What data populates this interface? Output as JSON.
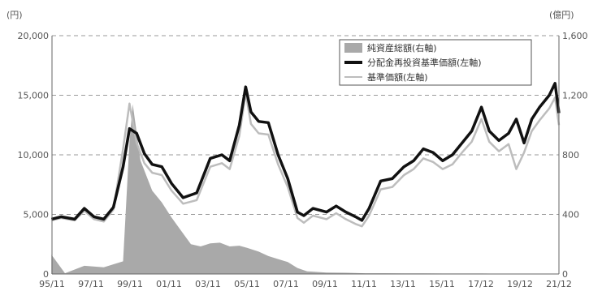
{
  "chart_data": {
    "type": "line",
    "left_axis": {
      "unit_label": "(円)",
      "range": [
        0,
        20000
      ],
      "ticks": [
        "0",
        "5,000",
        "10,000",
        "15,000",
        "20,000"
      ]
    },
    "right_axis": {
      "unit_label": "(億円)",
      "range": [
        0,
        1600
      ],
      "ticks": [
        "0",
        "400",
        "800",
        "1,200",
        "1,600"
      ]
    },
    "x_ticks": [
      "95/11",
      "97/11",
      "99/11",
      "01/11",
      "03/11",
      "05/11",
      "07/11",
      "09/11",
      "11/11",
      "13/11",
      "15/11",
      "17/12",
      "19/12",
      "21/12"
    ],
    "grid": "horizontal dashed",
    "legend_position": "top-right",
    "series": [
      {
        "name": "純資産総額(右軸)",
        "axis": "right",
        "style": "area",
        "color": "#a9a9a9",
        "x": [
          1995.8,
          1996.5,
          1997.5,
          1998.5,
          1999.5,
          1999.83,
          2000.0,
          2000.4,
          2001.0,
          2001.5,
          2002.0,
          2002.5,
          2003.0,
          2003.5,
          2004.0,
          2004.5,
          2005.0,
          2005.5,
          2005.9,
          2006.5,
          2007.0,
          2007.5,
          2008.0,
          2008.5,
          2009.0,
          2010.0,
          2011.0,
          2012.0,
          2013.0,
          2014.0,
          2015.0,
          2016.0,
          2017.0,
          2018.0,
          2019.0,
          2020.0,
          2021.0,
          2022.0
        ],
        "values": [
          130,
          5,
          55,
          45,
          85,
          890,
          1140,
          760,
          560,
          480,
          380,
          290,
          200,
          185,
          205,
          210,
          185,
          190,
          175,
          150,
          120,
          100,
          80,
          40,
          18,
          10,
          8,
          5,
          5,
          4,
          4,
          3,
          3,
          3,
          2,
          2,
          2,
          2
        ]
      },
      {
        "name": "分配金再投資基準価額(左軸)",
        "axis": "left",
        "style": "line",
        "color": "#111111",
        "x": [
          1995.8,
          1996.3,
          1997.0,
          1997.5,
          1998.0,
          1998.5,
          1999.0,
          1999.5,
          1999.83,
          2000.2,
          2000.6,
          2001.0,
          2001.5,
          2002.0,
          2002.6,
          2003.3,
          2004.0,
          2004.6,
          2005.0,
          2005.5,
          2005.83,
          2006.1,
          2006.5,
          2007.0,
          2007.5,
          2008.0,
          2008.5,
          2008.83,
          2009.3,
          2010.0,
          2010.5,
          2011.0,
          2011.5,
          2011.83,
          2012.2,
          2012.8,
          2013.4,
          2014.0,
          2014.5,
          2015.0,
          2015.5,
          2016.0,
          2016.5,
          2017.0,
          2017.5,
          2018.0,
          2018.4,
          2018.9,
          2019.4,
          2019.8,
          2020.2,
          2020.6,
          2021.0,
          2021.5,
          2021.8,
          2022.0
        ],
        "values": [
          4600,
          4800,
          4600,
          5500,
          4800,
          4600,
          5600,
          9000,
          12200,
          11800,
          10100,
          9200,
          9000,
          7600,
          6400,
          6800,
          9700,
          10000,
          9500,
          12500,
          15700,
          13600,
          12800,
          12700,
          10000,
          8000,
          5200,
          4900,
          5500,
          5200,
          5700,
          5200,
          4800,
          4500,
          5500,
          7800,
          8000,
          9000,
          9500,
          10500,
          10200,
          9500,
          10000,
          11000,
          12000,
          14000,
          12000,
          11200,
          11800,
          13000,
          11000,
          13000,
          14000,
          15000,
          16000,
          13500
        ]
      },
      {
        "name": "基準価額(左軸)",
        "axis": "left",
        "style": "line",
        "color": "#bdbdbd",
        "x": [
          1995.8,
          1996.3,
          1997.0,
          1997.5,
          1998.0,
          1998.5,
          1999.0,
          1999.5,
          1999.83,
          2000.2,
          2000.6,
          2001.0,
          2001.5,
          2002.0,
          2002.6,
          2003.3,
          2004.0,
          2004.6,
          2005.0,
          2005.5,
          2005.83,
          2006.1,
          2006.5,
          2007.0,
          2007.5,
          2008.0,
          2008.5,
          2008.83,
          2009.3,
          2010.0,
          2010.5,
          2011.0,
          2011.5,
          2011.83,
          2012.2,
          2012.8,
          2013.4,
          2014.0,
          2014.5,
          2015.0,
          2015.5,
          2016.0,
          2016.5,
          2017.0,
          2017.5,
          2018.0,
          2018.4,
          2018.9,
          2019.4,
          2019.8,
          2020.2,
          2020.6,
          2021.0,
          2021.5,
          2021.8,
          2022.0
        ],
        "values": [
          4500,
          4700,
          4500,
          5300,
          4600,
          4400,
          5400,
          10500,
          14300,
          11000,
          9300,
          8500,
          8300,
          7000,
          5900,
          6200,
          9000,
          9300,
          8800,
          11600,
          15200,
          12600,
          11800,
          11700,
          9200,
          7300,
          4700,
          4300,
          4900,
          4600,
          5100,
          4600,
          4200,
          4000,
          4900,
          7100,
          7300,
          8300,
          8800,
          9700,
          9400,
          8800,
          9200,
          10200,
          11100,
          13000,
          11100,
          10300,
          10900,
          8800,
          10200,
          12000,
          12900,
          13900,
          14800,
          12500
        ]
      }
    ]
  }
}
